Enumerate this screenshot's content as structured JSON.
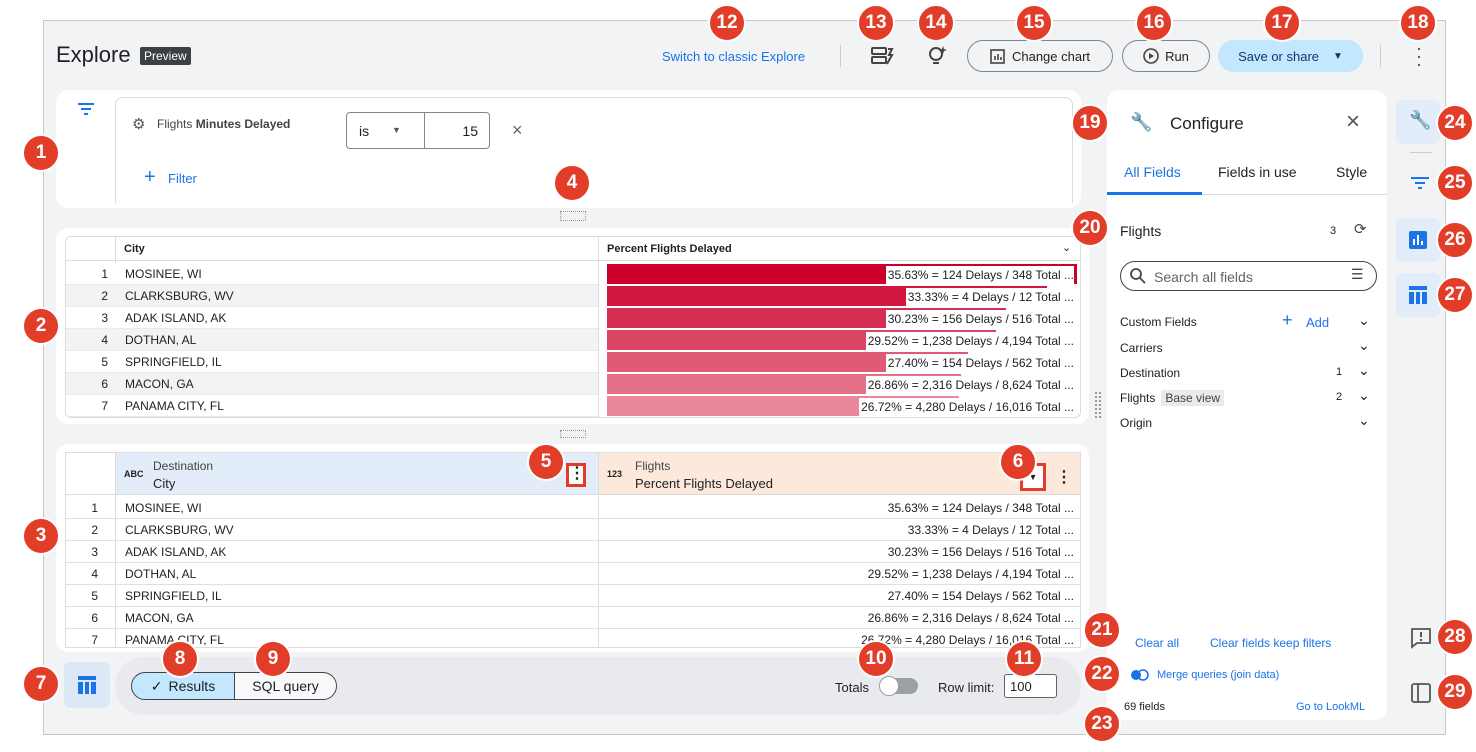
{
  "header": {
    "title": "Explore",
    "badge": "Preview",
    "classic_link": "Switch to classic Explore",
    "change_chart": "Change chart",
    "run": "Run",
    "save": "Save or share"
  },
  "filter": {
    "group": "Flights",
    "field": "Minutes Delayed",
    "operator": "is",
    "value": 15,
    "add": "Filter"
  },
  "visualization": {
    "columns": [
      "City",
      "Percent Flights Delayed"
    ],
    "rows": [
      {
        "index": 1,
        "city": "MOSINEE, WI",
        "percent": 35.63,
        "label": "35.63% = 124 Delays / 348 Total ..."
      },
      {
        "index": 2,
        "city": "CLARKSBURG, WV",
        "percent": 33.33,
        "label": "33.33% = 4 Delays / 12 Total ..."
      },
      {
        "index": 3,
        "city": "ADAK ISLAND, AK",
        "percent": 30.23,
        "label": "30.23% = 156 Delays / 516 Total ..."
      },
      {
        "index": 4,
        "city": "DOTHAN, AL",
        "percent": 29.52,
        "label": "29.52% = 1,238 Delays / 4,194 Total ..."
      },
      {
        "index": 5,
        "city": "SPRINGFIELD, IL",
        "percent": 27.4,
        "label": "27.40% = 154 Delays / 562 Total ..."
      },
      {
        "index": 6,
        "city": "MACON, GA",
        "percent": 26.86,
        "label": "26.86% = 2,316 Delays / 8,624 Total ..."
      },
      {
        "index": 7,
        "city": "PANAMA CITY, FL",
        "percent": 26.72,
        "label": "26.72% = 4,280 Delays / 16,016 Total ..."
      }
    ]
  },
  "results": {
    "dimension": {
      "type": "ABC",
      "group": "Destination",
      "field": "City"
    },
    "measure": {
      "type": "123",
      "group": "Flights",
      "field": "Percent Flights Delayed"
    },
    "rows": [
      [
        1,
        "MOSINEE, WI",
        "35.63% = 124 Delays / 348 Total ..."
      ],
      [
        2,
        "CLARKSBURG, WV",
        "33.33% = 4 Delays / 12 Total ..."
      ],
      [
        3,
        "ADAK ISLAND, AK",
        "30.23% = 156 Delays / 516 Total ..."
      ],
      [
        4,
        "DOTHAN, AL",
        "29.52% = 1,238 Delays / 4,194 Total ..."
      ],
      [
        5,
        "SPRINGFIELD, IL",
        "27.40% = 154 Delays / 562 Total ..."
      ],
      [
        6,
        "MACON, GA",
        "26.86% = 2,316 Delays / 8,624 Total ..."
      ],
      [
        7,
        "PANAMA CITY, FL",
        "26.72% = 4,280 Delays / 16,016 Total ..."
      ]
    ]
  },
  "footer": {
    "results": "Results",
    "sql": "SQL query",
    "totals": "Totals",
    "row_limit": "Row limit:",
    "row_limit_value": 100
  },
  "configure": {
    "title": "Configure",
    "tabs": [
      "All Fields",
      "Fields in use",
      "Style"
    ],
    "view": "Flights",
    "view_count": 3,
    "search": "Search all fields",
    "custom_fields": "Custom Fields",
    "add": "Add",
    "groups": [
      {
        "name": "Carriers"
      },
      {
        "name": "Destination",
        "count": 1
      },
      {
        "name": "Flights",
        "tag": "Base view",
        "count": 2
      },
      {
        "name": "Origin"
      }
    ],
    "clear_all": "Clear all",
    "clear_keep": "Clear fields keep filters",
    "merge": "Merge queries (join data)",
    "field_count": "69 fields",
    "lookml": "Go to LookML"
  },
  "callouts": [
    1,
    2,
    3,
    4,
    5,
    6,
    7,
    8,
    9,
    10,
    11,
    12,
    13,
    14,
    15,
    16,
    17,
    18,
    19,
    20,
    21,
    22,
    23,
    24,
    25,
    26,
    27,
    28,
    29
  ]
}
